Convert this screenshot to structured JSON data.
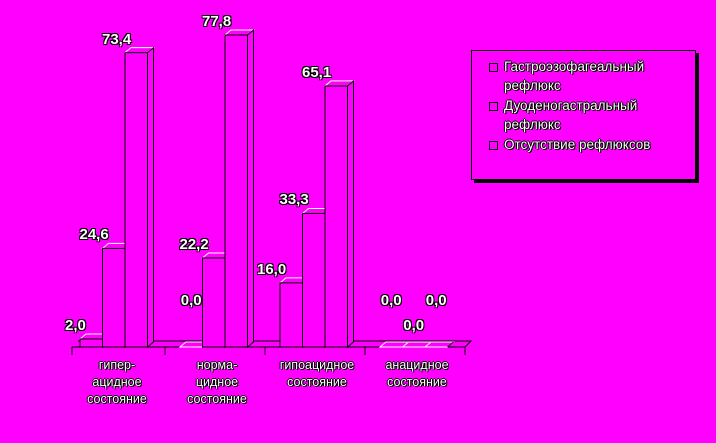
{
  "chart_data": {
    "type": "bar",
    "categories": [
      "гипер-\nацидное\nсостояние",
      "норма-\nцидное\nсостояние",
      "гипоацидное\nсостояние",
      "анацидное\nсостояние"
    ],
    "series": [
      {
        "name": "Гастроэзофагеальный рефлюкс",
        "color": "#ff00ff",
        "values": [
          2.0,
          0.0,
          16.0,
          0.0
        ],
        "value_labels": [
          "2,0",
          "0,0",
          "16,0",
          "0,0"
        ]
      },
      {
        "name": "Дуоденогастральный рефлюкс",
        "color": "#ff00ff",
        "values": [
          24.6,
          22.2,
          33.3,
          0.0
        ],
        "value_labels": [
          "24,6",
          "22,2",
          "33,3",
          "0,0"
        ]
      },
      {
        "name": "Отсутствие рефлюксов",
        "color": "#ff00ff",
        "values": [
          73.4,
          77.8,
          65.1,
          0.0
        ],
        "value_labels": [
          "73,4",
          "77,8",
          "65,1",
          "0,0"
        ]
      }
    ]
  }
}
